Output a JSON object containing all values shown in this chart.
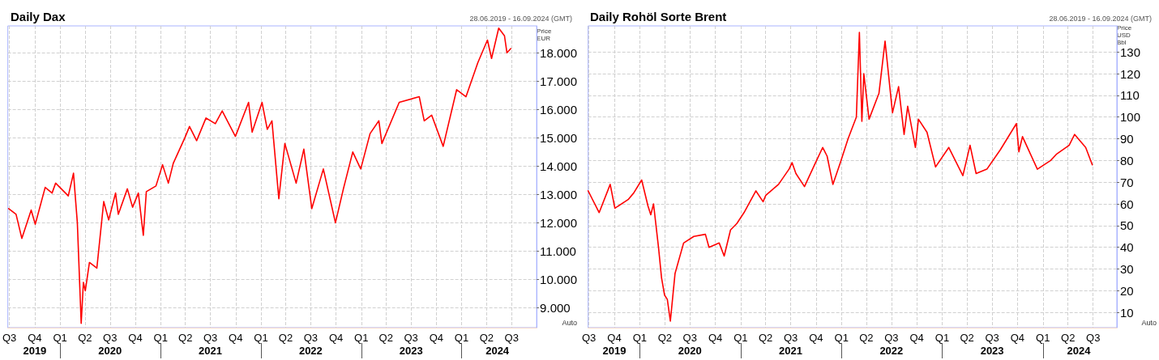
{
  "chart_data": [
    {
      "type": "line",
      "title": "Daily Dax",
      "subtitle": "28.06.2019 - 16.09.2024 (GMT)",
      "ylabel": "Price EUR",
      "annotations": [
        "Auto"
      ],
      "grid": true,
      "x": [
        "2019-06-28",
        "2019-07-25",
        "2019-08-15",
        "2019-09-18",
        "2019-10-03",
        "2019-11-08",
        "2019-12-03",
        "2019-12-16",
        "2020-01-31",
        "2020-02-19",
        "2020-03-04",
        "2020-03-18",
        "2020-03-26",
        "2020-04-02",
        "2020-04-17",
        "2020-05-14",
        "2020-06-08",
        "2020-06-26",
        "2020-07-21",
        "2020-07-31",
        "2020-09-02",
        "2020-09-21",
        "2020-10-12",
        "2020-10-30",
        "2020-11-10",
        "2020-12-15",
        "2021-01-08",
        "2021-01-29",
        "2021-02-16",
        "2021-03-30",
        "2021-04-16",
        "2021-05-12",
        "2021-06-15",
        "2021-07-19",
        "2021-08-13",
        "2021-09-30",
        "2021-10-04",
        "2021-11-17",
        "2021-11-30",
        "2022-01-05",
        "2022-01-24",
        "2022-02-10",
        "2022-03-07",
        "2022-03-29",
        "2022-05-09",
        "2022-06-06",
        "2022-07-05",
        "2022-08-16",
        "2022-09-29",
        "2022-10-28",
        "2022-12-01",
        "2022-12-30",
        "2023-02-02",
        "2023-03-06",
        "2023-03-17",
        "2023-05-19",
        "2023-07-31",
        "2023-08-18",
        "2023-09-14",
        "2023-10-26",
        "2023-12-14",
        "2024-01-17",
        "2024-02-29",
        "2024-04-04",
        "2024-04-19",
        "2024-05-15",
        "2024-06-05",
        "2024-06-14",
        "2024-06-28"
      ],
      "series": [
        {
          "color": "#ff0000",
          "values": [
            12500,
            12300,
            11450,
            12450,
            11950,
            13250,
            13050,
            13400,
            12950,
            13750,
            12000,
            8450,
            9900,
            9600,
            10600,
            10400,
            12750,
            12100,
            13050,
            12300,
            13200,
            12550,
            13050,
            11560,
            13100,
            13300,
            14050,
            13400,
            14100,
            15000,
            15400,
            14900,
            15700,
            15500,
            15950,
            15050,
            15150,
            16250,
            15200,
            16250,
            15300,
            15600,
            12850,
            14800,
            13400,
            14600,
            12500,
            13900,
            12000,
            13200,
            14500,
            13900,
            15150,
            15600,
            14800,
            16250,
            16450,
            15600,
            15800,
            14700,
            16700,
            16450,
            17650,
            18450,
            17800,
            18870,
            18600,
            18000,
            18150
          ]
        }
      ],
      "xlim": [
        "2019-06-25",
        "2024-09-30"
      ],
      "xticks": [
        {
          "value": "2019-07-01",
          "label": "Q3"
        },
        {
          "value": "2019-10-01",
          "label": "Q4"
        },
        {
          "value": "2020-01-01",
          "label": "Q1"
        },
        {
          "value": "2020-04-01",
          "label": "Q2"
        },
        {
          "value": "2020-07-01",
          "label": "Q3"
        },
        {
          "value": "2020-10-01",
          "label": "Q4"
        },
        {
          "value": "2021-01-01",
          "label": "Q1"
        },
        {
          "value": "2021-04-01",
          "label": "Q2"
        },
        {
          "value": "2021-07-01",
          "label": "Q3"
        },
        {
          "value": "2021-10-01",
          "label": "Q4"
        },
        {
          "value": "2022-01-01",
          "label": "Q1"
        },
        {
          "value": "2022-04-01",
          "label": "Q2"
        },
        {
          "value": "2022-07-01",
          "label": "Q3"
        },
        {
          "value": "2022-10-01",
          "label": "Q4"
        },
        {
          "value": "2023-01-01",
          "label": "Q1"
        },
        {
          "value": "2023-04-01",
          "label": "Q2"
        },
        {
          "value": "2023-07-01",
          "label": "Q3"
        },
        {
          "value": "2023-10-01",
          "label": "Q4"
        },
        {
          "value": "2024-01-01",
          "label": "Q1"
        },
        {
          "value": "2024-04-01",
          "label": "Q2"
        },
        {
          "value": "2024-07-01",
          "label": "Q3"
        }
      ],
      "x2lim": [
        "2019-06-25",
        "2024-09-30"
      ],
      "x2ticks": [
        {
          "value": "2019-10-01",
          "label": "2019"
        },
        {
          "value": "2020-01-01",
          "label": null
        },
        {
          "value": "2020-07-01",
          "label": "2020"
        },
        {
          "value": "2021-01-01",
          "label": null
        },
        {
          "value": "2021-07-01",
          "label": "2021"
        },
        {
          "value": "2022-01-01",
          "label": null
        },
        {
          "value": "2022-07-01",
          "label": "2022"
        },
        {
          "value": "2023-01-01",
          "label": null
        },
        {
          "value": "2023-07-01",
          "label": "2023"
        },
        {
          "value": "2024-01-01",
          "label": null
        },
        {
          "value": "2024-05-10",
          "label": "2024"
        }
      ],
      "ylim": [
        8300,
        18950
      ],
      "yticks": [
        {
          "value": 9000,
          "label": "9.000"
        },
        {
          "value": 10000,
          "label": "10.000"
        },
        {
          "value": 11000,
          "label": "11.000"
        },
        {
          "value": 12000,
          "label": "12.000"
        },
        {
          "value": 13000,
          "label": "13.000"
        },
        {
          "value": 14000,
          "label": "14.000"
        },
        {
          "value": 15000,
          "label": "15.000"
        },
        {
          "value": 16000,
          "label": "16.000"
        },
        {
          "value": 17000,
          "label": "17.000"
        },
        {
          "value": 18000,
          "label": "18.000"
        }
      ]
    },
    {
      "type": "line",
      "title": "Daily Rohöl Sorte Brent",
      "subtitle": "28.06.2019 - 16.09.2024 (GMT)",
      "ylabel": "Price USD Bbl",
      "annotations": [
        "Auto"
      ],
      "grid": true,
      "x": [
        "2019-06-28",
        "2019-07-10",
        "2019-08-07",
        "2019-09-16",
        "2019-10-03",
        "2019-11-20",
        "2019-12-10",
        "2020-01-08",
        "2020-01-31",
        "2020-02-10",
        "2020-02-20",
        "2020-03-09",
        "2020-03-20",
        "2020-03-31",
        "2020-04-10",
        "2020-04-21",
        "2020-05-08",
        "2020-06-08",
        "2020-07-15",
        "2020-08-26",
        "2020-09-08",
        "2020-10-15",
        "2020-11-02",
        "2020-11-25",
        "2020-12-18",
        "2021-01-13",
        "2021-02-25",
        "2021-03-23",
        "2021-04-02",
        "2021-05-18",
        "2021-06-25",
        "2021-07-06",
        "2021-07-20",
        "2021-08-20",
        "2021-09-29",
        "2021-10-25",
        "2021-11-10",
        "2021-12-01",
        "2021-12-28",
        "2022-01-25",
        "2022-02-24",
        "2022-03-07",
        "2022-03-16",
        "2022-03-23",
        "2022-04-11",
        "2022-05-17",
        "2022-06-08",
        "2022-07-05",
        "2022-07-27",
        "2022-08-16",
        "2022-08-29",
        "2022-09-26",
        "2022-10-07",
        "2022-11-07",
        "2022-12-08",
        "2023-01-25",
        "2023-03-17",
        "2023-04-12",
        "2023-05-04",
        "2023-06-12",
        "2023-07-31",
        "2023-09-27",
        "2023-10-06",
        "2023-10-19",
        "2023-12-12",
        "2024-01-29",
        "2024-02-20",
        "2024-04-05",
        "2024-04-25",
        "2024-06-04",
        "2024-06-28"
      ],
      "series": [
        {
          "color": "#ff0000",
          "values": [
            66,
            63,
            56,
            69,
            58,
            62,
            65,
            71,
            59,
            55,
            60,
            40,
            26,
            18,
            16,
            6,
            28,
            42,
            45,
            46,
            40,
            42,
            36,
            48,
            51,
            56,
            66,
            61,
            64,
            69,
            76,
            79,
            74,
            68,
            79,
            86,
            82,
            69,
            79,
            90,
            100,
            139,
            98,
            120,
            99,
            111,
            135,
            102,
            114,
            92,
            105,
            86,
            99,
            93,
            77,
            86,
            73,
            87,
            74,
            76,
            85,
            97,
            84,
            91,
            76,
            80,
            83,
            87,
            92,
            86,
            78
          ]
        }
      ],
      "xlim": [
        "2019-06-28",
        "2024-09-25"
      ],
      "xticks": [
        {
          "value": "2019-07-01",
          "label": "Q3"
        },
        {
          "value": "2019-10-01",
          "label": "Q4"
        },
        {
          "value": "2020-01-01",
          "label": "Q1"
        },
        {
          "value": "2020-04-01",
          "label": "Q2"
        },
        {
          "value": "2020-07-01",
          "label": "Q3"
        },
        {
          "value": "2020-10-01",
          "label": "Q4"
        },
        {
          "value": "2021-01-01",
          "label": "Q1"
        },
        {
          "value": "2021-04-01",
          "label": "Q2"
        },
        {
          "value": "2021-07-01",
          "label": "Q3"
        },
        {
          "value": "2021-10-01",
          "label": "Q4"
        },
        {
          "value": "2022-01-01",
          "label": "Q1"
        },
        {
          "value": "2022-04-01",
          "label": "Q2"
        },
        {
          "value": "2022-07-01",
          "label": "Q3"
        },
        {
          "value": "2022-10-01",
          "label": "Q4"
        },
        {
          "value": "2023-01-01",
          "label": "Q1"
        },
        {
          "value": "2023-04-01",
          "label": "Q2"
        },
        {
          "value": "2023-07-01",
          "label": "Q3"
        },
        {
          "value": "2023-10-01",
          "label": "Q4"
        },
        {
          "value": "2024-01-01",
          "label": "Q1"
        },
        {
          "value": "2024-04-01",
          "label": "Q2"
        },
        {
          "value": "2024-07-01",
          "label": "Q3"
        }
      ],
      "x2lim": [
        "2019-06-28",
        "2024-09-25"
      ],
      "x2ticks": [
        {
          "value": "2019-10-01",
          "label": "2019"
        },
        {
          "value": "2020-01-01",
          "label": null
        },
        {
          "value": "2020-07-01",
          "label": "2020"
        },
        {
          "value": "2021-01-01",
          "label": null
        },
        {
          "value": "2021-07-01",
          "label": "2021"
        },
        {
          "value": "2022-01-01",
          "label": null
        },
        {
          "value": "2022-07-01",
          "label": "2022"
        },
        {
          "value": "2023-01-01",
          "label": null
        },
        {
          "value": "2023-07-01",
          "label": "2023"
        },
        {
          "value": "2024-01-01",
          "label": null
        },
        {
          "value": "2024-05-10",
          "label": "2024"
        }
      ],
      "ylim": [
        3,
        142
      ],
      "yticks": [
        10,
        20,
        30,
        40,
        50,
        60,
        70,
        80,
        90,
        100,
        110,
        120,
        130
      ]
    }
  ]
}
